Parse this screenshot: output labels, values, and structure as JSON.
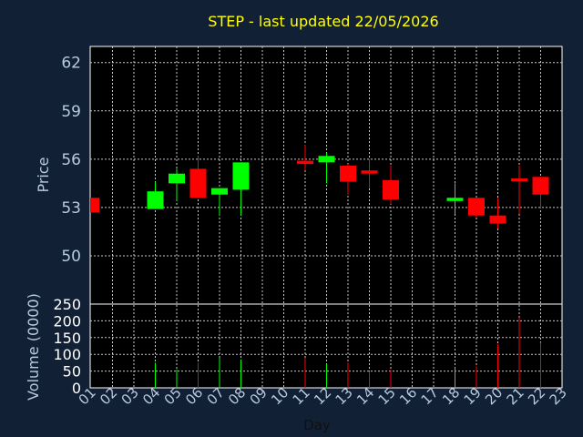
{
  "chart_data": {
    "type": "candlestick",
    "title": "STEP - last updated 22/05/2026",
    "xlabel": "Day",
    "price_panel": {
      "ylabel": "Price",
      "ylim": [
        47.0,
        63.0
      ],
      "yticks": [
        50,
        53,
        56,
        59,
        62
      ],
      "grid": true
    },
    "volume_panel": {
      "ylabel": "Volume (0000)",
      "ylim": [
        0,
        250
      ],
      "yticks": [
        0,
        50,
        100,
        150,
        200,
        250
      ],
      "grid": true
    },
    "x_ticks": [
      "01",
      "02",
      "03",
      "04",
      "05",
      "06",
      "07",
      "08",
      "09",
      "10",
      "11",
      "12",
      "13",
      "14",
      "15",
      "16",
      "17",
      "18",
      "19",
      "20",
      "21",
      "22",
      "23"
    ],
    "colors": {
      "up": "#00ff00",
      "down": "#ff0000",
      "grid": "#c8c8c8",
      "panel": "#000000"
    },
    "candles": [
      {
        "day": 1,
        "open": 53.6,
        "high": 53.6,
        "low": 52.7,
        "close": 52.7,
        "volume": 0
      },
      {
        "day": 4,
        "open": 52.9,
        "high": 54.6,
        "low": 52.9,
        "close": 54.0,
        "volume": 75
      },
      {
        "day": 5,
        "open": 54.5,
        "high": 55.4,
        "low": 53.4,
        "close": 55.1,
        "volume": 55
      },
      {
        "day": 6,
        "open": 55.4,
        "high": 56.2,
        "low": 53.6,
        "close": 53.6,
        "volume": 75
      },
      {
        "day": 7,
        "open": 53.8,
        "high": 54.2,
        "low": 52.5,
        "close": 54.2,
        "volume": 90
      },
      {
        "day": 8,
        "open": 54.1,
        "high": 55.8,
        "low": 52.5,
        "close": 55.8,
        "volume": 85
      },
      {
        "day": 11,
        "open": 55.9,
        "high": 56.9,
        "low": 55.3,
        "close": 55.7,
        "volume": 90
      },
      {
        "day": 12,
        "open": 55.8,
        "high": 56.4,
        "low": 54.5,
        "close": 56.2,
        "volume": 70
      },
      {
        "day": 13,
        "open": 55.6,
        "high": 55.7,
        "low": 53.8,
        "close": 54.6,
        "volume": 75
      },
      {
        "day": 14,
        "open": 55.3,
        "high": 56.0,
        "low": 54.2,
        "close": 55.1,
        "volume": 50
      },
      {
        "day": 15,
        "open": 54.7,
        "high": 55.6,
        "low": 53.2,
        "close": 53.5,
        "volume": 55
      },
      {
        "day": 18,
        "open": 53.4,
        "high": 54.5,
        "low": 52.6,
        "close": 53.6,
        "volume": 60
      },
      {
        "day": 19,
        "open": 53.6,
        "high": 53.6,
        "low": 52.4,
        "close": 52.5,
        "volume": 65
      },
      {
        "day": 20,
        "open": 52.5,
        "high": 53.6,
        "low": 51.7,
        "close": 52.0,
        "volume": 130
      },
      {
        "day": 21,
        "open": 54.8,
        "high": 55.6,
        "low": 52.6,
        "close": 54.7,
        "volume": 210
      },
      {
        "day": 22,
        "open": 54.9,
        "high": 54.9,
        "low": 52.9,
        "close": 53.8,
        "volume": 135
      }
    ]
  }
}
